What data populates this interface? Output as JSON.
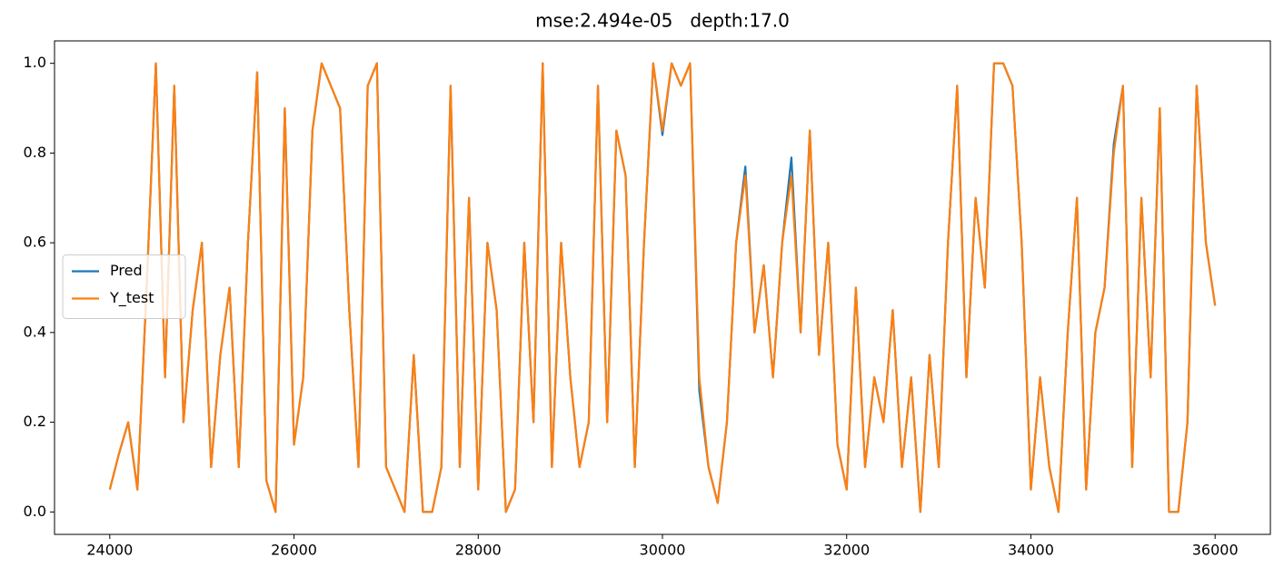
{
  "chart_data": {
    "type": "line",
    "title": "mse:2.494e-05   depth:17.0",
    "x": [
      24000,
      24100,
      24200,
      24300,
      24400,
      24500,
      24600,
      24700,
      24800,
      24900,
      25000,
      25100,
      25200,
      25300,
      25400,
      25500,
      25600,
      25700,
      25800,
      25900,
      26000,
      26100,
      26200,
      26300,
      26400,
      26500,
      26600,
      26700,
      26800,
      26900,
      27000,
      27100,
      27200,
      27300,
      27400,
      27500,
      27600,
      27700,
      27800,
      27900,
      28000,
      28100,
      28200,
      28300,
      28400,
      28500,
      28600,
      28700,
      28800,
      28900,
      29000,
      29100,
      29200,
      29300,
      29400,
      29500,
      29600,
      29700,
      29800,
      29900,
      30000,
      30100,
      30200,
      30300,
      30400,
      30500,
      30600,
      30700,
      30800,
      30900,
      31000,
      31100,
      31200,
      31300,
      31400,
      31500,
      31600,
      31700,
      31800,
      31900,
      32000,
      32100,
      32200,
      32300,
      32400,
      32500,
      32600,
      32700,
      32800,
      32900,
      33000,
      33100,
      33200,
      33300,
      33400,
      33500,
      33600,
      33700,
      33800,
      33900,
      34000,
      34100,
      34200,
      34300,
      34400,
      34500,
      34600,
      34700,
      34800,
      34900,
      35000,
      35100,
      35200,
      35300,
      35400,
      35500,
      35600,
      35700,
      35800,
      35900,
      36000
    ],
    "series": [
      {
        "name": "Pred",
        "color": "#1f77b4",
        "values": [
          0.05,
          0.13,
          0.2,
          0.05,
          0.5,
          1.0,
          0.3,
          0.95,
          0.2,
          0.45,
          0.6,
          0.1,
          0.35,
          0.5,
          0.1,
          0.6,
          0.98,
          0.07,
          0.0,
          0.9,
          0.15,
          0.3,
          0.85,
          1.0,
          0.95,
          0.9,
          0.45,
          0.1,
          0.95,
          1.0,
          0.1,
          0.05,
          0.0,
          0.35,
          0.0,
          0.0,
          0.1,
          0.95,
          0.1,
          0.7,
          0.05,
          0.6,
          0.45,
          0.0,
          0.05,
          0.6,
          0.2,
          1.0,
          0.1,
          0.6,
          0.3,
          0.1,
          0.2,
          0.95,
          0.2,
          0.85,
          0.75,
          0.1,
          0.6,
          1.0,
          0.84,
          1.0,
          0.95,
          1.0,
          0.27,
          0.1,
          0.02,
          0.2,
          0.6,
          0.77,
          0.4,
          0.55,
          0.3,
          0.6,
          0.79,
          0.4,
          0.85,
          0.35,
          0.6,
          0.15,
          0.05,
          0.5,
          0.1,
          0.3,
          0.2,
          0.45,
          0.1,
          0.3,
          0.0,
          0.35,
          0.1,
          0.6,
          0.95,
          0.3,
          0.7,
          0.5,
          1.0,
          1.0,
          0.95,
          0.6,
          0.05,
          0.3,
          0.1,
          0.0,
          0.4,
          0.7,
          0.05,
          0.4,
          0.5,
          0.82,
          0.95,
          0.1,
          0.7,
          0.3,
          0.9,
          0.0,
          0.0,
          0.2,
          0.95,
          0.6,
          0.46
        ]
      },
      {
        "name": "Y_test",
        "color": "#ff7f0e",
        "values": [
          0.05,
          0.13,
          0.2,
          0.05,
          0.5,
          1.0,
          0.3,
          0.95,
          0.2,
          0.45,
          0.6,
          0.1,
          0.35,
          0.5,
          0.1,
          0.6,
          0.98,
          0.07,
          0.0,
          0.9,
          0.15,
          0.3,
          0.85,
          1.0,
          0.95,
          0.9,
          0.45,
          0.1,
          0.95,
          1.0,
          0.1,
          0.05,
          0.0,
          0.35,
          0.0,
          0.0,
          0.1,
          0.95,
          0.1,
          0.7,
          0.05,
          0.6,
          0.45,
          0.0,
          0.05,
          0.6,
          0.2,
          1.0,
          0.1,
          0.6,
          0.3,
          0.1,
          0.2,
          0.95,
          0.2,
          0.85,
          0.75,
          0.1,
          0.6,
          1.0,
          0.85,
          1.0,
          0.95,
          1.0,
          0.3,
          0.1,
          0.02,
          0.2,
          0.6,
          0.75,
          0.4,
          0.55,
          0.3,
          0.6,
          0.75,
          0.4,
          0.85,
          0.35,
          0.6,
          0.15,
          0.05,
          0.5,
          0.1,
          0.3,
          0.2,
          0.45,
          0.1,
          0.3,
          0.0,
          0.35,
          0.1,
          0.6,
          0.95,
          0.3,
          0.7,
          0.5,
          1.0,
          1.0,
          0.95,
          0.6,
          0.05,
          0.3,
          0.1,
          0.0,
          0.4,
          0.7,
          0.05,
          0.4,
          0.5,
          0.8,
          0.95,
          0.1,
          0.7,
          0.3,
          0.9,
          0.0,
          0.0,
          0.2,
          0.95,
          0.6,
          0.46
        ]
      }
    ],
    "xlim": [
      23400,
      36600
    ],
    "ylim": [
      -0.05,
      1.05
    ],
    "xticks": [
      24000,
      26000,
      28000,
      30000,
      32000,
      34000,
      36000
    ],
    "yticks": [
      {
        "value": 0,
        "label": "0.0"
      },
      0.2,
      0.4,
      0.6,
      0.8,
      {
        "value": 1,
        "label": "1.0"
      }
    ],
    "legend": "center left"
  }
}
